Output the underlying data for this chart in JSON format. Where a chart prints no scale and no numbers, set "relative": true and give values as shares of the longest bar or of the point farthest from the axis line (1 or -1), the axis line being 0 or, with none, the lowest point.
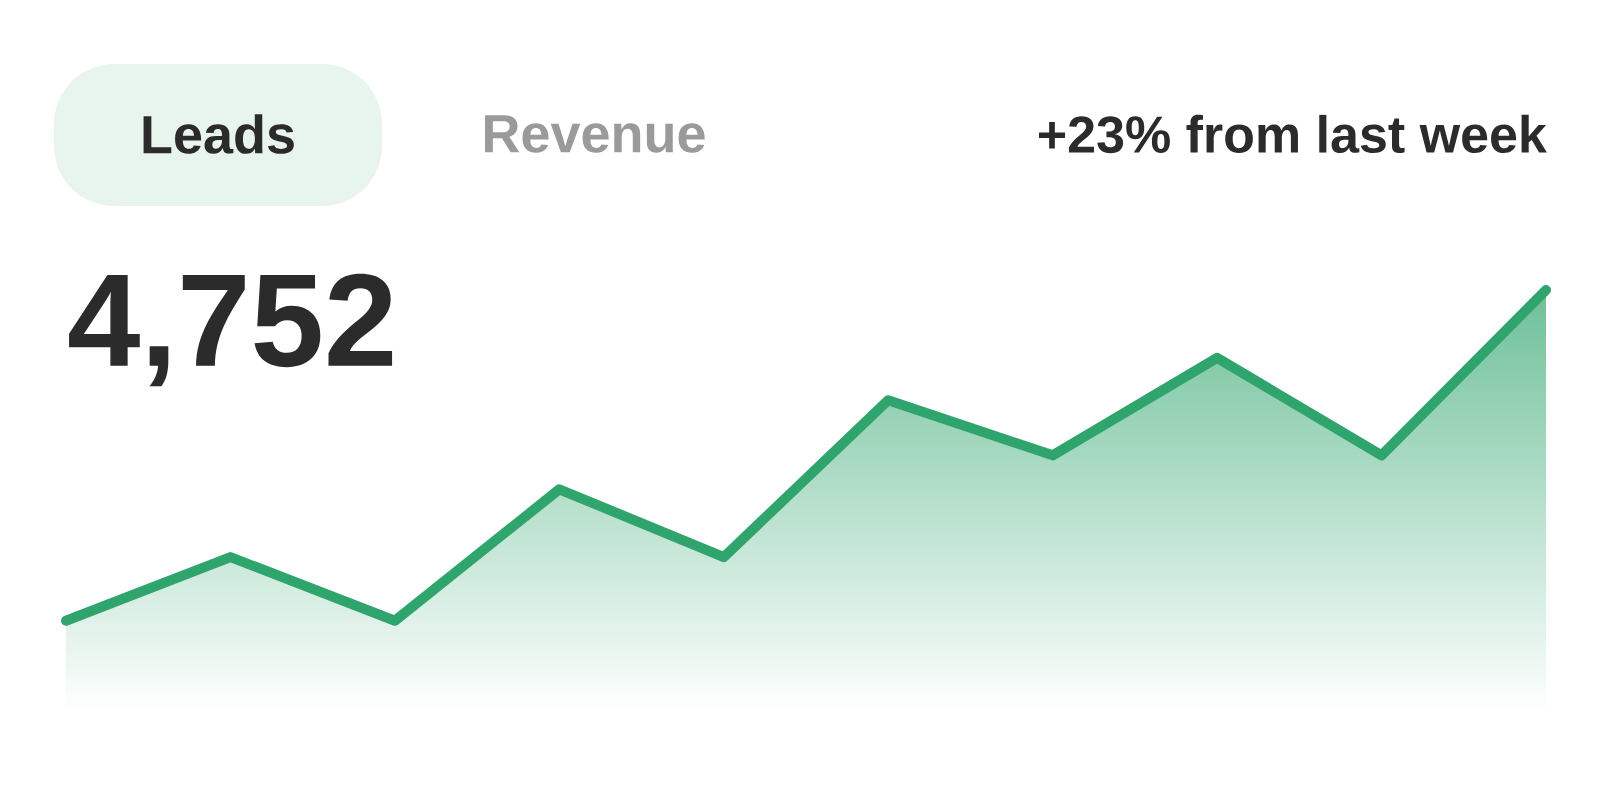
{
  "chart_data": {
    "type": "area",
    "relative": true,
    "title": "4,752",
    "subtitle": "+23% from last week",
    "annotations": [
      "Leads",
      "Revenue"
    ],
    "categories": [
      null,
      null,
      null,
      null,
      null,
      null,
      null,
      null,
      null,
      null
    ],
    "series": [
      {
        "color": "#2fa56d",
        "values": [
          0.22,
          0.37,
          0.22,
          0.53,
          0.37,
          0.74,
          0.61,
          0.84,
          0.61,
          1
        ]
      }
    ]
  }
}
